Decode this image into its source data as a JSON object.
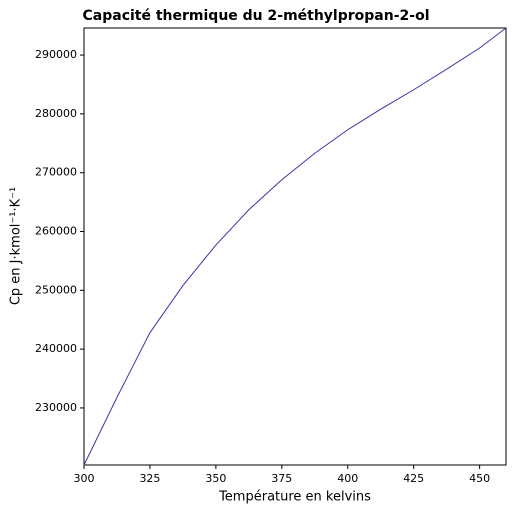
{
  "chart_data": {
    "type": "line",
    "title": "Capacité thermique du 2-méthylpropan-2-ol",
    "x_label": "Température en kelvins",
    "y_label": "Cp en J·kmol⁻¹·K⁻¹",
    "x": [
      300,
      312.5,
      325,
      337.5,
      350,
      362.5,
      375,
      387.5,
      400,
      412.5,
      425,
      437.5,
      450,
      460
    ],
    "series": [
      {
        "color": "#3838a8",
        "values": [
          220300,
          231800,
          242800,
          250800,
          257700,
          263700,
          268800,
          273300,
          277300,
          280800,
          284100,
          287600,
          291200,
          294600
        ]
      }
    ],
    "xlim": [
      300,
      460
    ],
    "ylim": [
      220300,
      294600
    ],
    "xticks": [
      300,
      325,
      350,
      375,
      400,
      425,
      450
    ],
    "yticks": [
      230000,
      240000,
      250000,
      260000,
      270000,
      280000,
      290000
    ]
  }
}
